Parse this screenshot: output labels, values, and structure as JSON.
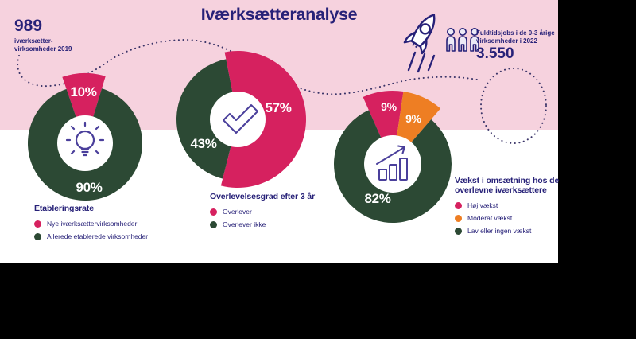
{
  "page": {
    "title": "Iværksætteranalyse"
  },
  "stat_top_left": {
    "value": "989",
    "label_line1": "iværksætter-",
    "label_line2": "virksomheder 2019"
  },
  "stat_top_right": {
    "label_line1": "Fuldtidsjobs i de 0-3 årige",
    "label_line2": "virksomheder i 2022",
    "value": "3.550"
  },
  "colors": {
    "background_pink": "#f6d2de",
    "raspberry": "#d6215f",
    "dark_green": "#2c4934",
    "orange": "#ee7e23",
    "navy": "#272178",
    "icon_indigo": "#4a3f9b",
    "white": "#ffffff",
    "letterbox_black": "#000000"
  },
  "icons": {
    "donut1_center": "lightbulb-icon",
    "donut2_center": "checkmark-icon",
    "donut3_center": "growth-chart-icon",
    "top_right": "rocket-icon",
    "jobs": "people-icon"
  },
  "chart_data": [
    {
      "type": "pie",
      "title": "Etableringsrate",
      "start_angle": -19,
      "legend_position": "below",
      "center_icon": "lightbulb-icon",
      "slices": [
        {
          "label": "Nye iværksættervirksomheder",
          "value": 10,
          "display": "10%",
          "color": "#d6215f",
          "emphasis": true
        },
        {
          "label": "Allerede etablerede virksomheder",
          "value": 90,
          "display": "90%",
          "color": "#2c4934",
          "emphasis": false
        }
      ]
    },
    {
      "type": "pie",
      "title": "Overlevelsesgrad efter 3 år",
      "start_angle": -11,
      "legend_position": "below",
      "center_icon": "checkmark-icon",
      "slices": [
        {
          "label": "Overlever",
          "value": 57,
          "display": "57%",
          "color": "#d6215f",
          "emphasis": true
        },
        {
          "label": "Overlever ikke",
          "value": 43,
          "display": "43%",
          "color": "#2c4934",
          "emphasis": false
        }
      ]
    },
    {
      "type": "pie",
      "title": "Vækst i omsætning hos de overlevne iværksættere",
      "start_angle": -24,
      "legend_position": "right",
      "center_icon": "growth-chart-icon",
      "slices": [
        {
          "label": "Høj vækst",
          "value": 9,
          "display": "9%",
          "color": "#d6215f",
          "emphasis": true
        },
        {
          "label": "Moderat vækst",
          "value": 9,
          "display": "9%",
          "color": "#ee7e23",
          "emphasis": true
        },
        {
          "label": "Lav eller ingen vækst",
          "value": 82,
          "display": "82%",
          "color": "#2c4934",
          "emphasis": false
        }
      ]
    }
  ]
}
